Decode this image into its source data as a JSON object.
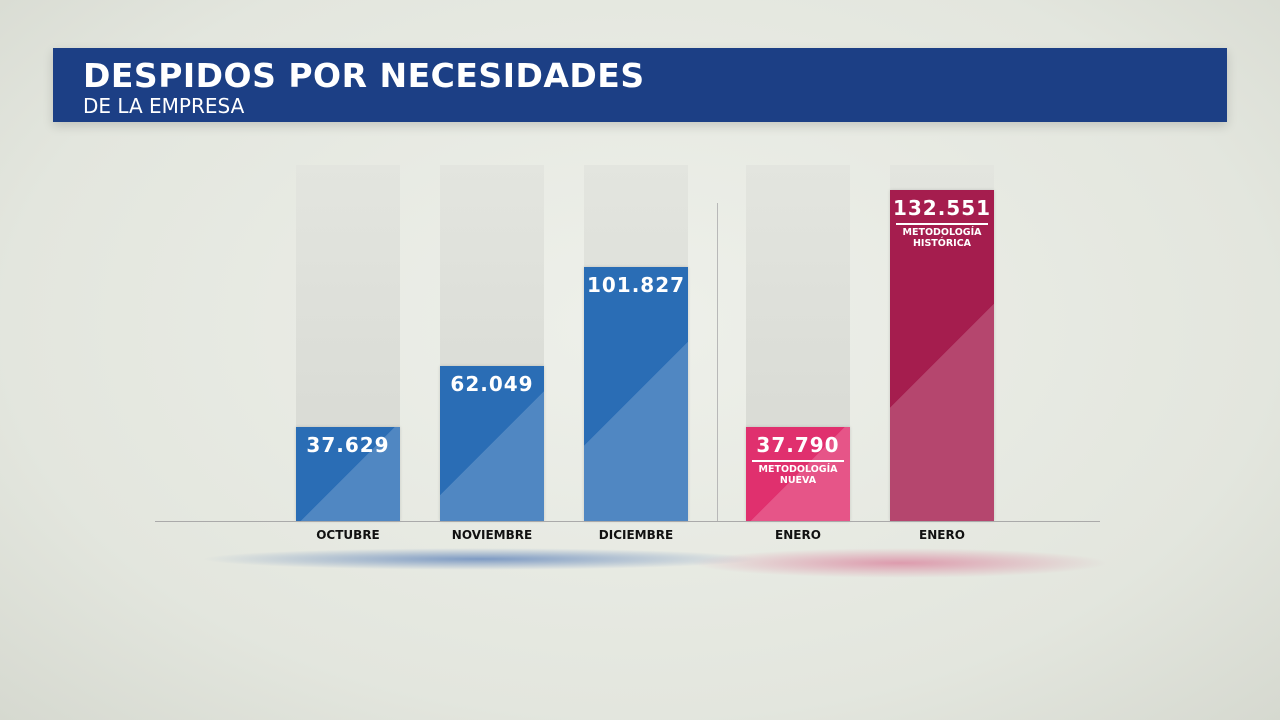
{
  "chart_data": {
    "type": "bar",
    "title": "DESPIDOS POR NECESIDADES",
    "subtitle": "DE LA EMPRESA",
    "categories": [
      "OCTUBRE",
      "NOVIEMBRE",
      "DICIEMBRE",
      "ENERO",
      "ENERO"
    ],
    "values": [
      37629,
      62049,
      101827,
      37790,
      132551
    ],
    "labels": [
      "37.629",
      "62.049",
      "101.827",
      "37.790",
      "132.551"
    ],
    "notes": [
      "",
      "",
      "",
      "METODOLOGÍA NUEVA",
      "METODOLOGÍA HISTÓRICA"
    ],
    "colors": [
      "#2a6db5",
      "#2a6db5",
      "#2a6db5",
      "#e0306e",
      "#a51d4e"
    ],
    "ylim": [
      0,
      132551
    ],
    "grid": false
  }
}
